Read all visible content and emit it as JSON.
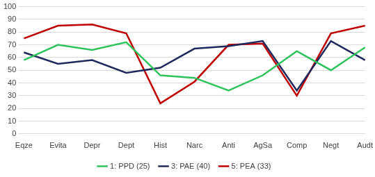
{
  "chart_data": {
    "type": "line",
    "categories": [
      "Eqze",
      "Evita",
      "Depr",
      "Dept",
      "Hist",
      "Narc",
      "Anti",
      "AgSa",
      "Comp",
      "Negt",
      "Audt"
    ],
    "series": [
      {
        "name": "1: PPD (25)",
        "color": "#2cc45a",
        "values": [
          58,
          70,
          66,
          72,
          46,
          44,
          34,
          46,
          65,
          50,
          68
        ]
      },
      {
        "name": "3: PAE (40)",
        "color": "#1f2a5c",
        "values": [
          64,
          55,
          58,
          48,
          52,
          67,
          69,
          73,
          34,
          73,
          58
        ]
      },
      {
        "name": "5: PEA (33)",
        "color": "#c00000",
        "values": [
          75,
          85,
          86,
          79,
          24,
          41,
          70,
          71,
          30,
          79,
          85
        ]
      }
    ],
    "ylim": [
      0,
      100
    ],
    "yticks": [
      0,
      10,
      20,
      30,
      40,
      50,
      60,
      70,
      80,
      90,
      100
    ],
    "grid": true,
    "legend": "bottom",
    "marker": "none",
    "line_style": "solid"
  }
}
